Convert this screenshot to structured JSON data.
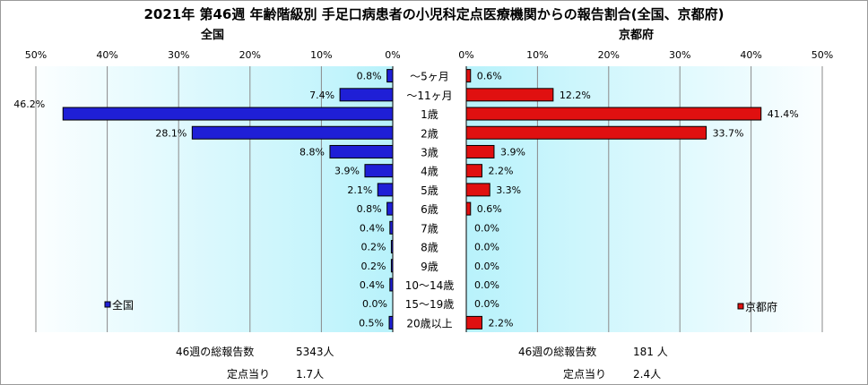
{
  "title": "2021年 第46週 年齢階級別 手足口病患者の小児科定点医療機関からの報告割合(全国、京都府)",
  "chart_data": [
    {
      "type": "bar",
      "title": "全国",
      "orientation": "horizontal",
      "direction": "right-to-left",
      "xlim": [
        0,
        50
      ],
      "ticks": [
        "50%",
        "40%",
        "30%",
        "20%",
        "10%",
        "0%"
      ],
      "categories": [
        "～5ヶ月",
        "～11ヶ月",
        "1歳",
        "2歳",
        "3歳",
        "4歳",
        "5歳",
        "6歳",
        "7歳",
        "8歳",
        "9歳",
        "10～14歳",
        "15～19歳",
        "20歳以上"
      ],
      "series": [
        {
          "name": "全国",
          "color": "#1f1fd6",
          "values": [
            0.8,
            7.4,
            46.2,
            28.1,
            8.8,
            3.9,
            2.1,
            0.8,
            0.4,
            0.2,
            0.2,
            0.4,
            0.0,
            0.5
          ],
          "labels": [
            "0.8%",
            "7.4%",
            "46.2%",
            "28.1%",
            "8.8%",
            "3.9%",
            "2.1%",
            "0.8%",
            "0.4%",
            "0.2%",
            "0.2%",
            "0.4%",
            "0.0%",
            "0.5%"
          ]
        }
      ],
      "legend": "bottom-left",
      "grid": true
    },
    {
      "type": "bar",
      "title": "京都府",
      "orientation": "horizontal",
      "direction": "left-to-right",
      "xlim": [
        0,
        50
      ],
      "ticks": [
        "0%",
        "10%",
        "20%",
        "30%",
        "40%",
        "50%"
      ],
      "categories": [
        "～5ヶ月",
        "～11ヶ月",
        "1歳",
        "2歳",
        "3歳",
        "4歳",
        "5歳",
        "6歳",
        "7歳",
        "8歳",
        "9歳",
        "10～14歳",
        "15～19歳",
        "20歳以上"
      ],
      "series": [
        {
          "name": "京都府",
          "color": "#e01010",
          "values": [
            0.6,
            12.2,
            41.4,
            33.7,
            3.9,
            2.2,
            3.3,
            0.6,
            0.0,
            0.0,
            0.0,
            0.0,
            0.0,
            2.2
          ],
          "labels": [
            "0.6%",
            "12.2%",
            "41.4%",
            "33.7%",
            "3.9%",
            "2.2%",
            "3.3%",
            "0.6%",
            "0.0%",
            "0.0%",
            "0.0%",
            "0.0%",
            "0.0%",
            "2.2%"
          ]
        }
      ],
      "legend": "bottom-right",
      "grid": true
    }
  ],
  "footer": {
    "national": {
      "total_label": "46週の総報告数",
      "total_value": "5343人",
      "per_label": "定点当り",
      "per_value": "1.7人"
    },
    "kyoto": {
      "total_label": "46週の総報告数",
      "total_value": "181 人",
      "per_label": "定点当り",
      "per_value": "2.4人"
    }
  }
}
